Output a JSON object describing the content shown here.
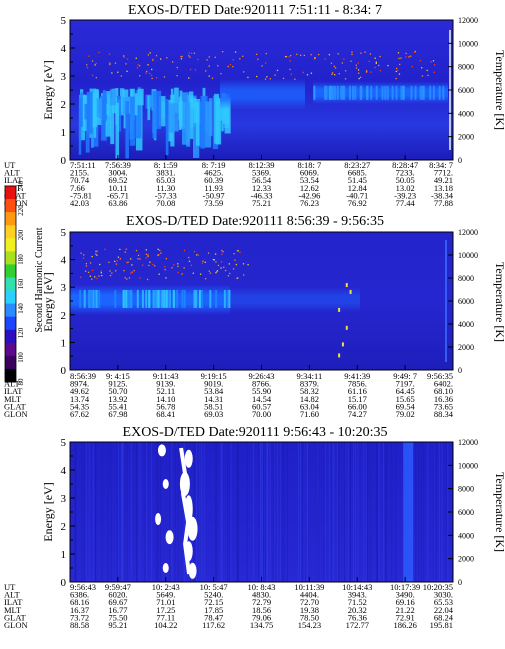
{
  "panels": [
    {
      "title": "EXOS-D/TED   Date:920111   7:51:11 - 8:34: 7",
      "ylabel_left": "Energy [eV]",
      "ylabel_right": "Temperature [K]",
      "energy_ticks": [
        "0",
        "1",
        "2",
        "3",
        "4",
        "5"
      ],
      "temp_ticks": [
        "0",
        "2000",
        "4000",
        "6000",
        "8000",
        "10000",
        "12000"
      ],
      "row_labels": [
        "UT",
        "ALT",
        "ILAT",
        "MLT",
        "GLAT",
        "GLON"
      ],
      "columns": [
        [
          "7:51:11",
          "2155.",
          "70.74",
          "7.66",
          "-75.81",
          "42.03"
        ],
        [
          "7:56:39",
          "3004.",
          "69.52",
          "10.11",
          "-65.71",
          "63.86"
        ],
        [
          "8: 1:59",
          "3831.",
          "65.03",
          "11.30",
          "-57.33",
          "70.08"
        ],
        [
          "8: 7:19",
          "4625.",
          "60.39",
          "11.93",
          "-50.97",
          "73.59"
        ],
        [
          "8:12:39",
          "5369.",
          "56.54",
          "12.33",
          "-46.33",
          "75.21"
        ],
        [
          "8:18: 7",
          "6069.",
          "53.54",
          "12.62",
          "-42.96",
          "76.23"
        ],
        [
          "8:23:27",
          "6685.",
          "51.45",
          "12.84",
          "-40.71",
          "76.92"
        ],
        [
          "8:28:47",
          "7233.",
          "50.05",
          "13.02",
          "-39.23",
          "77.44"
        ],
        [
          "8:34: 7",
          "7712.",
          "49.21",
          "13.18",
          "-38.34",
          "77.88"
        ]
      ]
    },
    {
      "title": "EXOS-D/TED   Date:920111   8:56:39 - 9:56:35",
      "ylabel_left": "Energy [eV]",
      "ylabel_right": "Temperature [K]",
      "energy_ticks": [
        "0",
        "1",
        "2",
        "3",
        "4",
        "5"
      ],
      "temp_ticks": [
        "0",
        "2000",
        "4000",
        "6000",
        "8000",
        "10000",
        "12000"
      ],
      "row_labels": [
        "UT",
        "ALT",
        "ILAT",
        "MLT",
        "GLAT",
        "GLON"
      ],
      "columns": [
        [
          "8:56:39",
          "8974.",
          "49.62",
          "13.74",
          "54.35",
          "67.62"
        ],
        [
          "9: 4:15",
          "9125.",
          "50.70",
          "13.92",
          "55.41",
          "67.98"
        ],
        [
          "9:11:43",
          "9139.",
          "52.11",
          "14.10",
          "56.78",
          "68.41"
        ],
        [
          "9:19:15",
          "9019.",
          "53.84",
          "14.31",
          "58.51",
          "69.03"
        ],
        [
          "9:26:43",
          "8766.",
          "55.90",
          "14.54",
          "60.57",
          "70.00"
        ],
        [
          "9:34:11",
          "8379.",
          "58.32",
          "14.82",
          "63.04",
          "71.60"
        ],
        [
          "9:41:39",
          "7856.",
          "61.16",
          "15.17",
          "66.00",
          "74.27"
        ],
        [
          "9:49: 7",
          "7197.",
          "64.45",
          "15.65",
          "69.54",
          "79.02"
        ],
        [
          "9:56:35",
          "6402.",
          "68.10",
          "16.36",
          "73.65",
          "88.34"
        ]
      ]
    },
    {
      "title": "EXOS-D/TED   Date:920111   9:56:43 - 10:20:35",
      "ylabel_left": "Energy [eV]",
      "ylabel_right": "Temperature [K]",
      "energy_ticks": [
        "0",
        "1",
        "2",
        "3",
        "4",
        "5"
      ],
      "temp_ticks": [
        "0",
        "2000",
        "4000",
        "6000",
        "8000",
        "10000",
        "12000"
      ],
      "row_labels": [
        "UT",
        "ALT",
        "ILAT",
        "MLT",
        "GLAT",
        "GLON"
      ],
      "columns": [
        [
          "9:56:43",
          "6386.",
          "68.16",
          "16.37",
          "73.72",
          "88.58"
        ],
        [
          "9:59:47",
          "6020.",
          "69.67",
          "16.77",
          "75.50",
          "95.21"
        ],
        [
          "10: 2:43",
          "5649.",
          "71.01",
          "17.25",
          "77.11",
          "104.22"
        ],
        [
          "10: 5:47",
          "5240.",
          "72.15",
          "17.85",
          "78.47",
          "117.62"
        ],
        [
          "10: 8:43",
          "4830.",
          "72.79",
          "18.56",
          "79.06",
          "134.75"
        ],
        [
          "10:11:39",
          "4404.",
          "72.70",
          "19.38",
          "78.50",
          "154.23"
        ],
        [
          "10:14:43",
          "3943.",
          "71.52",
          "20.32",
          "76.36",
          "172.77"
        ],
        [
          "10:17:39",
          "3490.",
          "69.16",
          "21.22",
          "72.91",
          "186.26"
        ],
        [
          "10:20:35",
          "3030.",
          "65.53",
          "22.04",
          "68.24",
          "195.81"
        ]
      ]
    }
  ],
  "colorbar": {
    "label": "Second Harmonic Current",
    "ticks": [
      "80",
      "100",
      "120",
      "140",
      "160",
      "180",
      "200",
      "220",
      "240"
    ],
    "colors": [
      "#000000",
      "#3a0060",
      "#5a0a8a",
      "#2a10c0",
      "#1e46ff",
      "#2a8cff",
      "#2ad0ff",
      "#30e0b0",
      "#30d030",
      "#a8e020",
      "#f0f020",
      "#ffd020",
      "#ff9a10",
      "#ff5010",
      "#e81010"
    ]
  },
  "chart_data": [
    {
      "type": "heatmap",
      "title": "EXOS-D/TED   Date:920111   7:51:11 - 8:34: 7",
      "xlabel": "UT",
      "ylabel": "Energy [eV]",
      "y2label": "Temperature [K]",
      "ylim": [
        0,
        5
      ],
      "y2lim": [
        0,
        12000
      ],
      "x_ticks": [
        "7:51:11",
        "7:56:39",
        "8: 1:59",
        "8: 7:19",
        "8:12:39",
        "8:18: 7",
        "8:23:27",
        "8:28:47",
        "8:34: 7"
      ]
    },
    {
      "type": "heatmap",
      "title": "EXOS-D/TED   Date:920111   8:56:39 - 9:56:35",
      "xlabel": "UT",
      "ylabel": "Energy [eV]",
      "y2label": "Temperature [K]",
      "ylim": [
        0,
        5
      ],
      "y2lim": [
        0,
        12000
      ],
      "x_ticks": [
        "8:56:39",
        "9: 4:15",
        "9:11:43",
        "9:19:15",
        "9:26:43",
        "9:34:11",
        "9:41:39",
        "9:49: 7",
        "9:56:35"
      ]
    },
    {
      "type": "heatmap",
      "title": "EXOS-D/TED   Date:920111   9:56:43 - 10:20:35",
      "xlabel": "UT",
      "ylabel": "Energy [eV]",
      "y2label": "Temperature [K]",
      "ylim": [
        0,
        5
      ],
      "y2lim": [
        0,
        12000
      ],
      "x_ticks": [
        "9:56:43",
        "9:59:47",
        "10: 2:43",
        "10: 5:47",
        "10: 8:43",
        "10:11:39",
        "10:14:43",
        "10:17:39",
        "10:20:35"
      ]
    }
  ]
}
